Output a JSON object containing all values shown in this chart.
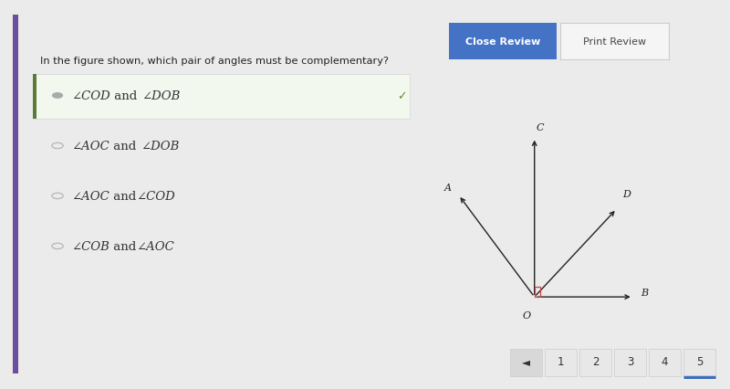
{
  "bg_color": "#ebebeb",
  "panel_color": "#ffffff",
  "question_text": "In the figure shown, which pair of angles must be complementary?",
  "options": [
    {
      "label": "∠COD and ∠DOB",
      "correct": true,
      "italic_parts": [
        true,
        false,
        true
      ]
    },
    {
      "label": "∠AOC and ∠DOB",
      "correct": false
    },
    {
      "label": "∠AOC and∠COD",
      "correct": false
    },
    {
      "label": "∠COB and∠AOC",
      "correct": false
    }
  ],
  "btn_close_color": "#4472c4",
  "btn_close_text": "Close Review",
  "btn_print_text": "Print Review",
  "btn_print_bg": "#f0f0f0",
  "nav_pages": [
    "◄",
    "1",
    "2",
    "3",
    "4",
    "5"
  ],
  "nav_active_idx": 5,
  "nav_active_color": "#3d6fba",
  "left_bar_color": "#6b4f9e",
  "selected_bg_color": "#f2f8ee",
  "selected_bar_color": "#5a7a3a",
  "check_color": "#6a8a2a",
  "angle_sq_color": "#cc4444"
}
